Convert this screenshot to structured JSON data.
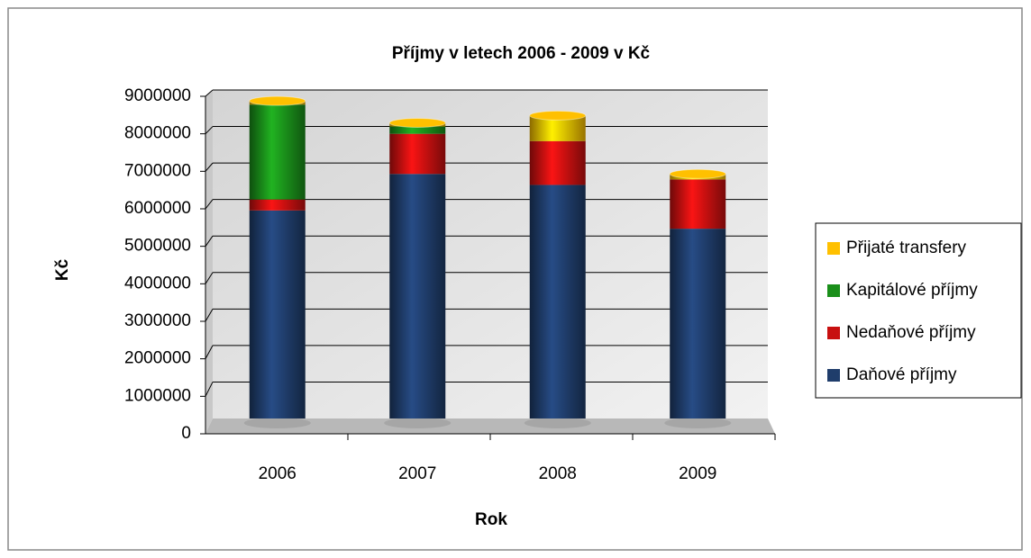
{
  "chart_data": {
    "type": "bar",
    "stacked": true,
    "title": "Příjmy v letech 2006 - 2009 v Kč",
    "x_label": "Rok",
    "y_label": "Kč",
    "categories": [
      "2006",
      "2007",
      "2008",
      "2009"
    ],
    "series": [
      {
        "name": "Daňové příjmy",
        "color": "#1f3d6b",
        "values": [
          5700000,
          6700000,
          6400000,
          5200000
        ]
      },
      {
        "name": "Nedaňové příjmy",
        "color": "#c81010",
        "values": [
          300000,
          1100000,
          1200000,
          1350000
        ]
      },
      {
        "name": "Kapitálové příjmy",
        "color": "#1a8f1a",
        "values": [
          2600000,
          200000,
          0,
          0
        ]
      },
      {
        "name": "Přijaté transfery",
        "color": "#ffc000",
        "values": [
          100000,
          100000,
          700000,
          150000
        ]
      }
    ],
    "ylim": [
      0,
      9000000
    ],
    "yticks": [
      0,
      1000000,
      2000000,
      3000000,
      4000000,
      5000000,
      6000000,
      7000000,
      8000000,
      9000000
    ],
    "grid": true,
    "legend": "right"
  }
}
